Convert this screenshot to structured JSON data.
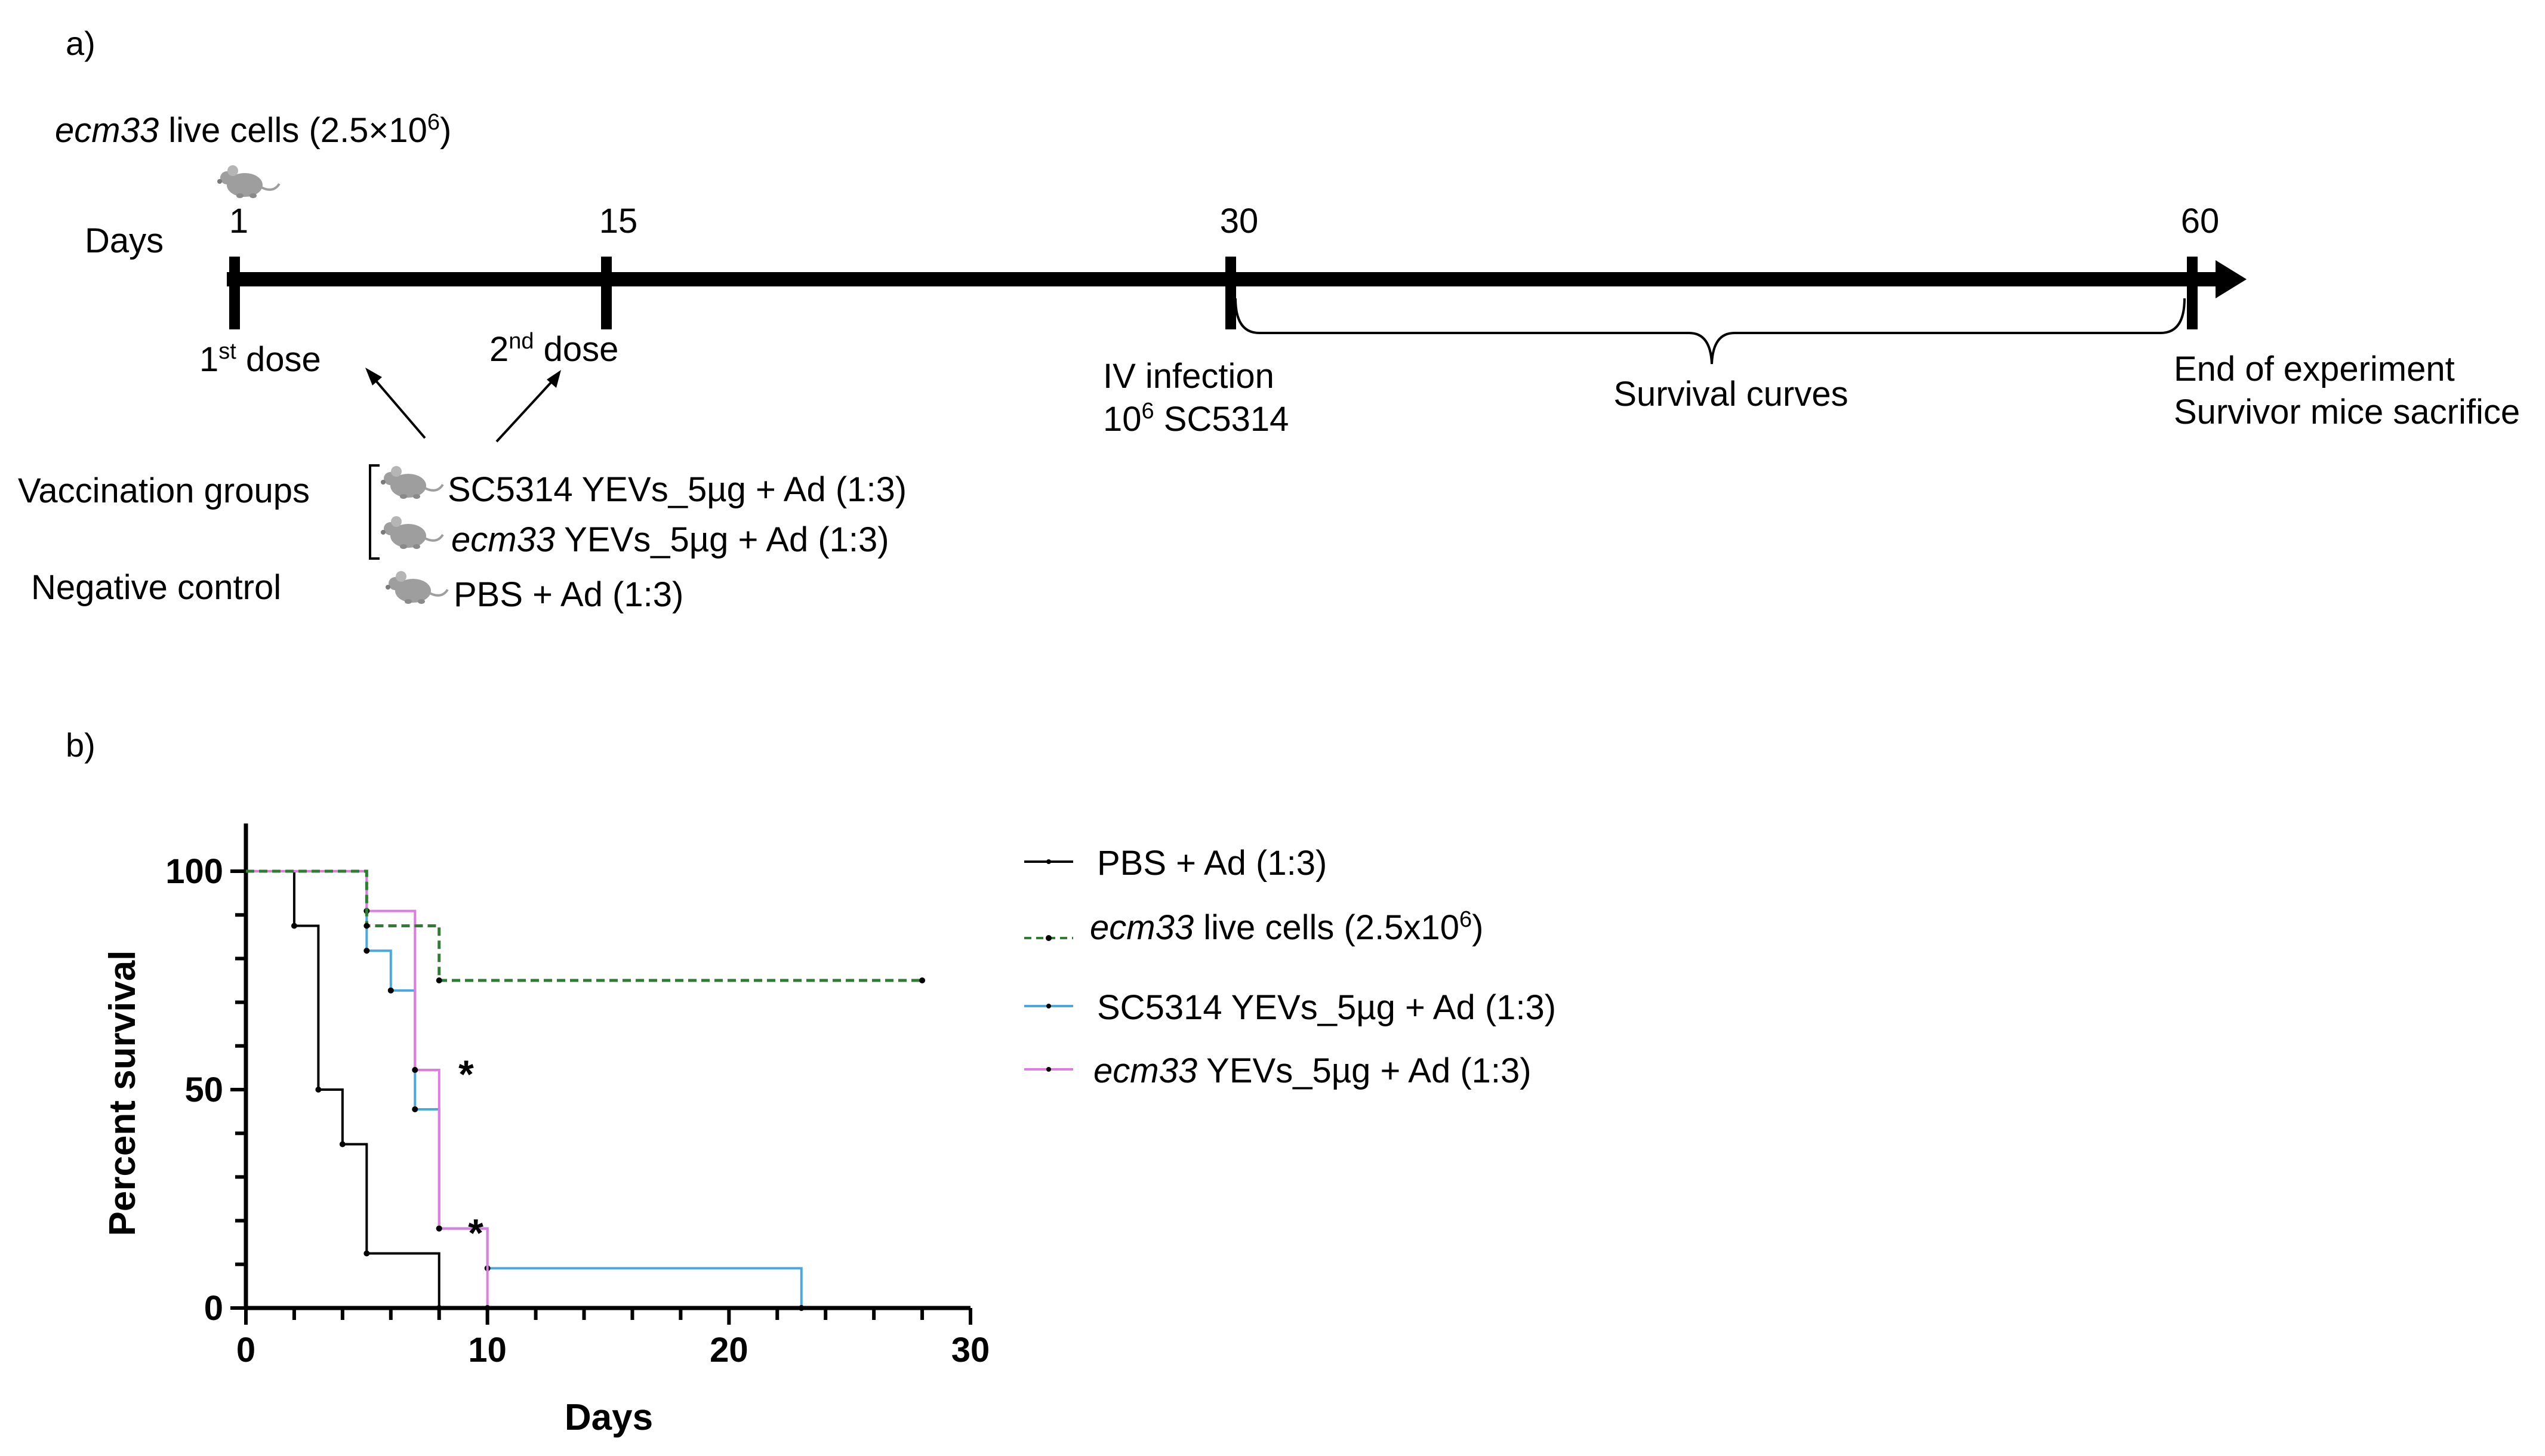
{
  "panel_a": {
    "label": "a)",
    "top_group": {
      "italic": "ecm33",
      "rest": " live cells (2.5×10",
      "sup": "6",
      "close": ")"
    },
    "axis_label": "Days",
    "ticks": [
      {
        "day": 1,
        "label": "1"
      },
      {
        "day": 15,
        "label": "15"
      },
      {
        "day": 30,
        "label": "30"
      },
      {
        "day": 60,
        "label": "60"
      }
    ],
    "dose1": {
      "num": "1",
      "sup": "st",
      "text": " dose"
    },
    "dose2": {
      "num": "2",
      "sup": "nd",
      "text": " dose"
    },
    "infection": {
      "line1": "IV infection",
      "line2_num": "10",
      "line2_sup": "6",
      "line2_rest": " SC5314"
    },
    "survival_curves": "Survival curves",
    "end_line1": "End of experiment",
    "end_line2": "Survivor mice sacrifice",
    "vaccination_groups_label": "Vaccination groups",
    "negative_control_label": "Negative control",
    "groups": [
      {
        "italic": "",
        "text": "SC5314 YEVs_5µg + Ad (1:3)"
      },
      {
        "italic": "ecm33",
        "text": " YEVs_5µg + Ad (1:3)"
      }
    ],
    "negative_group": {
      "italic": "",
      "text": "PBS + Ad (1:3)"
    },
    "mouse_icon": "mouse-icon"
  },
  "chart_data": {
    "type": "line",
    "panel_label": "b)",
    "title": "",
    "xlabel": "Days",
    "ylabel": "Percent survival",
    "xlim": [
      0,
      30
    ],
    "ylim": [
      0,
      100
    ],
    "xticks": [
      0,
      10,
      20,
      30
    ],
    "yticks": [
      0,
      50,
      100
    ],
    "grid": false,
    "legend_position": "right",
    "step": true,
    "series": [
      {
        "name": "PBS + Ad (1:3)",
        "color": "#000000",
        "dash": "solid",
        "x": [
          0,
          2,
          3,
          4,
          5,
          8
        ],
        "y": [
          100,
          87.5,
          50,
          37.5,
          12.5,
          0
        ]
      },
      {
        "name": "ecm33 live cells (2.5x10⁶)",
        "name_italic": "ecm33",
        "name_rest": " live cells (2.5x10",
        "name_sup": "6",
        "name_close": ")",
        "color": "#2e7d32",
        "dash": "dashed",
        "x": [
          0,
          5,
          8,
          28
        ],
        "y": [
          100,
          87.5,
          75,
          75
        ]
      },
      {
        "name": "SC5314 YEVs_5µg + Ad (1:3)",
        "color": "#4aa8e0",
        "dash": "solid",
        "x": [
          0,
          5,
          6,
          7,
          8,
          10,
          23
        ],
        "y": [
          100,
          81.8,
          72.7,
          45.5,
          18.2,
          9.1,
          0
        ]
      },
      {
        "name": "ecm33 YEVs_5µg + Ad (1:3)",
        "name_italic": "ecm33",
        "name_rest": " YEVs_5µg + Ad (1:3)",
        "color": "#e07be0",
        "dash": "solid",
        "x": [
          0,
          5,
          7,
          8,
          10
        ],
        "y": [
          100,
          90.9,
          54.5,
          18.2,
          0
        ]
      }
    ],
    "annotations": [
      {
        "text": "*",
        "x": 8.8,
        "y": 54.5
      },
      {
        "text": "*",
        "x": 9.2,
        "y": 18.2
      }
    ]
  }
}
